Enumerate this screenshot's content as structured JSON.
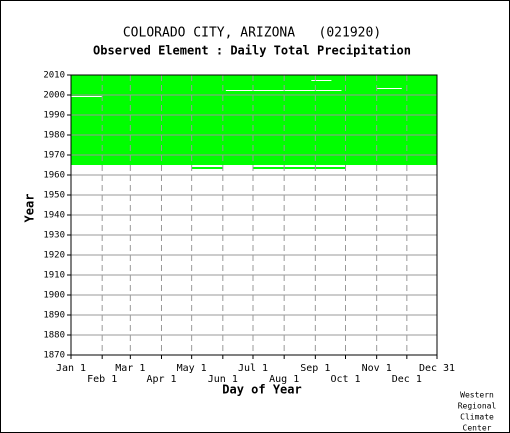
{
  "chart_data": {
    "type": "coverage",
    "title": "COLORADO CITY, ARIZONA   (021920)",
    "subtitle": "Observed Element : Daily Total Precipitation",
    "x_label": "Day of Year",
    "y_label": "Year",
    "credit": [
      "Western",
      "Regional",
      "Climate",
      "Center"
    ],
    "xlim": [
      1,
      365
    ],
    "xticks": [
      {
        "value": 1,
        "label": "Jan 1"
      },
      {
        "value": 32,
        "label": "Feb 1"
      },
      {
        "value": 60,
        "label": "Mar 1"
      },
      {
        "value": 91,
        "label": "Apr 1"
      },
      {
        "value": 121,
        "label": "May 1"
      },
      {
        "value": 152,
        "label": "Jun 1"
      },
      {
        "value": 182,
        "label": "Jul 1"
      },
      {
        "value": 213,
        "label": "Aug 1"
      },
      {
        "value": 244,
        "label": "Sep 1"
      },
      {
        "value": 274,
        "label": "Oct 1"
      },
      {
        "value": 305,
        "label": "Nov 1"
      },
      {
        "value": 335,
        "label": "Dec 1"
      },
      {
        "value": 365,
        "label": "Dec 31"
      }
    ],
    "ylim": [
      1870,
      2010
    ],
    "yticks": [
      1870,
      1880,
      1890,
      1900,
      1910,
      1920,
      1930,
      1940,
      1950,
      1960,
      1970,
      1980,
      1990,
      2000,
      2010
    ],
    "grid": true,
    "color": "#00ff00",
    "gap_color": "#ffffff",
    "present": [
      {
        "year_start": 1965,
        "year_end": 2010,
        "day_start": 1,
        "day_end": 365
      },
      {
        "year_start": 1963,
        "year_end": 1964,
        "day_start": 121,
        "day_end": 152
      },
      {
        "year_start": 1963,
        "year_end": 1964,
        "day_start": 182,
        "day_end": 274
      }
    ],
    "missing": [
      {
        "year_start": 1999,
        "year_end": 1999.5,
        "day_start": 1,
        "day_end": 32
      },
      {
        "year_start": 2002,
        "year_end": 2002.5,
        "day_start": 155,
        "day_end": 270
      },
      {
        "year_start": 2003,
        "year_end": 2003.5,
        "day_start": 305,
        "day_end": 330
      },
      {
        "year_start": 2007,
        "year_end": 2007.5,
        "day_start": 240,
        "day_end": 260
      }
    ]
  }
}
